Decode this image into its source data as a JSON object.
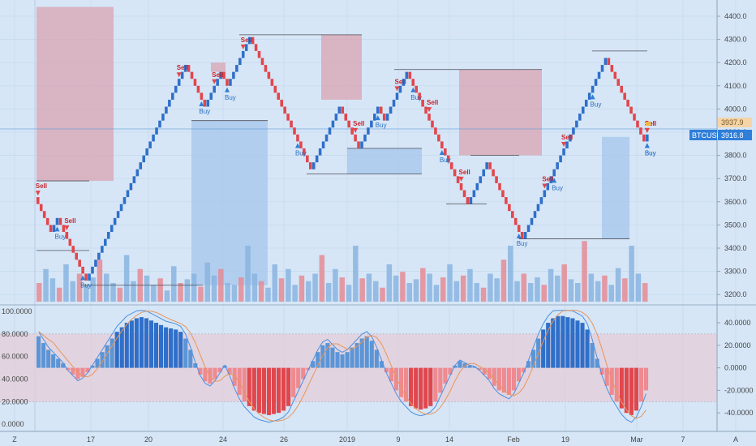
{
  "chart_data": [
    {
      "type": "renko",
      "symbol": "BTCUSD",
      "last_price_label": "3916.8",
      "secondary_price_label": "3937.9",
      "ylim": [
        3150,
        4470
      ],
      "y_ticks": [
        {
          "v": 4400,
          "label": "4400.0"
        },
        {
          "v": 4300,
          "label": "4300.0"
        },
        {
          "v": 4200,
          "label": "4200.0"
        },
        {
          "v": 4100,
          "label": "4100.0"
        },
        {
          "v": 4000,
          "label": "4000.0"
        },
        {
          "v": 3900,
          "label": "3900.0"
        },
        {
          "v": 3800,
          "label": "3800.0"
        },
        {
          "v": 3700,
          "label": "3700.0"
        },
        {
          "v": 3600,
          "label": "3600.0"
        },
        {
          "v": 3500,
          "label": "3500.0"
        },
        {
          "v": 3400,
          "label": "3400.0"
        },
        {
          "v": 3300,
          "label": "3300.0"
        },
        {
          "v": 3200,
          "label": "3200.0"
        }
      ],
      "brick_size": 30,
      "price_path": [
        3620,
        3460,
        3530,
        3410,
        3240,
        3320,
        4200,
        4000,
        4180,
        4080,
        4320,
        3720,
        4030,
        3830,
        4030,
        3930,
        4160,
        3590,
        3780,
        3500,
        3440,
        3680,
        4240,
        3860,
        3900
      ],
      "signals": [
        {
          "type": "Sell",
          "brick": 0
        },
        {
          "type": "Buy",
          "brick": 6
        },
        {
          "type": "Sell",
          "brick": 9
        },
        {
          "type": "Buy",
          "brick": 14
        },
        {
          "type": "Sell",
          "brick": 44
        },
        {
          "type": "Buy",
          "brick": 51
        },
        {
          "type": "Sell",
          "brick": 55
        },
        {
          "type": "Buy",
          "brick": 59
        },
        {
          "type": "Sell",
          "brick": 64
        },
        {
          "type": "Buy",
          "brick": 81
        },
        {
          "type": "Sell",
          "brick": 99
        },
        {
          "type": "Buy",
          "brick": 106
        },
        {
          "type": "Sell",
          "brick": 112
        },
        {
          "type": "Buy",
          "brick": 117
        },
        {
          "type": "Sell",
          "brick": 122
        },
        {
          "type": "Buy",
          "brick": 126
        },
        {
          "type": "Sell",
          "brick": 132
        },
        {
          "type": "Buy",
          "brick": 150
        },
        {
          "type": "Sell",
          "brick": 158
        },
        {
          "type": "Buy",
          "brick": 161
        },
        {
          "type": "Sell",
          "brick": 164
        },
        {
          "type": "Buy",
          "brick": 173
        },
        {
          "type": "Sell",
          "brick": 219
        },
        {
          "type": "Buy",
          "brick": 232
        },
        {
          "type": "Sell",
          "brick": 235
        },
        {
          "type": "Buy",
          "brick": 238
        }
      ],
      "zones": [
        {
          "kind": "sell",
          "x0": 45,
          "x1": 140,
          "top": 4440,
          "bottom": 3690
        },
        {
          "kind": "sell",
          "x0": 260,
          "x1": 278,
          "top": 4200,
          "bottom": 4160
        },
        {
          "kind": "sell",
          "x0": 396,
          "x1": 446,
          "top": 4320,
          "bottom": 4040
        },
        {
          "kind": "sell",
          "x0": 566,
          "x1": 668,
          "top": 4170,
          "bottom": 3800
        },
        {
          "kind": "buy",
          "x0": 236,
          "x1": 330,
          "top": 3950,
          "bottom": 3240
        },
        {
          "kind": "buy",
          "x0": 428,
          "x1": 520,
          "top": 3830,
          "bottom": 3720
        },
        {
          "kind": "buy",
          "x0": 742,
          "x1": 776,
          "top": 3880,
          "bottom": 3440
        }
      ],
      "levels": [
        {
          "x0": 45,
          "x1": 110,
          "v": 3690
        },
        {
          "x0": 45,
          "x1": 110,
          "v": 3390
        },
        {
          "x0": 100,
          "x1": 250,
          "v": 3240
        },
        {
          "x0": 295,
          "x1": 446,
          "v": 4320
        },
        {
          "x0": 236,
          "x1": 330,
          "v": 3950
        },
        {
          "x0": 378,
          "x1": 520,
          "v": 3720
        },
        {
          "x0": 428,
          "x1": 520,
          "v": 3830
        },
        {
          "x0": 486,
          "x1": 668,
          "v": 4170
        },
        {
          "x0": 550,
          "x1": 600,
          "v": 3590
        },
        {
          "x0": 580,
          "x1": 640,
          "v": 3800
        },
        {
          "x0": 640,
          "x1": 776,
          "v": 3440
        },
        {
          "x0": 730,
          "x1": 798,
          "v": 4250
        }
      ],
      "volume": [
        20,
        35,
        25,
        15,
        40,
        22,
        30,
        18,
        26,
        45,
        30,
        20,
        15,
        50,
        22,
        35,
        28,
        18,
        25,
        12,
        38,
        20,
        24,
        30,
        16,
        42,
        28,
        35,
        20,
        18,
        26,
        60,
        30,
        22,
        15,
        40,
        25,
        35,
        18,
        28,
        22,
        30,
        50,
        20,
        35,
        26,
        18,
        60,
        25,
        30,
        22,
        15,
        40,
        28,
        32,
        20,
        24,
        36,
        30,
        18,
        26,
        40,
        22,
        28,
        35,
        20,
        15,
        30,
        25,
        45,
        60,
        22,
        30,
        20,
        26,
        18,
        35,
        28,
        40,
        24,
        20,
        65,
        30,
        22,
        28,
        18,
        36,
        25,
        60,
        30,
        20,
        28,
        22,
        35,
        15,
        30,
        26,
        40,
        20,
        28
      ],
      "x_ticks": [
        {
          "x": 18,
          "label": "Z"
        },
        {
          "x": 112,
          "label": "17"
        },
        {
          "x": 183,
          "label": "20"
        },
        {
          "x": 275,
          "label": "24"
        },
        {
          "x": 350,
          "label": "26"
        },
        {
          "x": 428,
          "label": "2019"
        },
        {
          "x": 491,
          "label": "9"
        },
        {
          "x": 554,
          "label": "14"
        },
        {
          "x": 633,
          "label": "Feb"
        },
        {
          "x": 697,
          "label": "19"
        },
        {
          "x": 785,
          "label": "Mar"
        },
        {
          "x": 842,
          "label": "7"
        },
        {
          "x": 907,
          "label": "A"
        }
      ]
    },
    {
      "type": "oscillator",
      "left_ylim": [
        -5,
        103
      ],
      "left_ticks": [
        {
          "v": 100,
          "label": "100.0000"
        },
        {
          "v": 80,
          "label": "80.0000"
        },
        {
          "v": 60,
          "label": "60.0000"
        },
        {
          "v": 40,
          "label": "40.0000"
        },
        {
          "v": 20,
          "label": "20.0000"
        },
        {
          "v": 0,
          "label": "0.0000"
        }
      ],
      "right_ticks": [
        {
          "v": 40,
          "label": "40.0000"
        },
        {
          "v": 20,
          "label": "20.0000"
        },
        {
          "v": 0,
          "label": "0.0000"
        },
        {
          "v": -20,
          "label": "-20.0000"
        },
        {
          "v": -40,
          "label": "-40.0000"
        }
      ],
      "bands": [
        80,
        20
      ],
      "histogram": [
        28,
        22,
        16,
        12,
        8,
        4,
        -2,
        -6,
        -10,
        -8,
        -4,
        2,
        8,
        14,
        20,
        26,
        32,
        36,
        40,
        42,
        44,
        45,
        44,
        42,
        40,
        38,
        36,
        35,
        34,
        32,
        26,
        16,
        4,
        -6,
        -12,
        -14,
        -10,
        -4,
        2,
        -6,
        -16,
        -24,
        -30,
        -34,
        -38,
        -40,
        -41,
        -42,
        -41,
        -40,
        -38,
        -34,
        -26,
        -18,
        -10,
        -2,
        6,
        14,
        20,
        22,
        18,
        14,
        12,
        14,
        18,
        22,
        26,
        28,
        24,
        16,
        6,
        -4,
        -12,
        -20,
        -26,
        -30,
        -34,
        -36,
        -37,
        -36,
        -34,
        -30,
        -22,
        -14,
        -6,
        2,
        6,
        4,
        2,
        1,
        -2,
        -6,
        -10,
        -16,
        -20,
        -22,
        -24,
        -20,
        -12,
        -4,
        6,
        16,
        26,
        34,
        40,
        44,
        46,
        46,
        45,
        44,
        42,
        40,
        34,
        22,
        8,
        -6,
        -16,
        -24,
        -30,
        -36,
        -40,
        -42,
        -38,
        -30,
        -20
      ]
    }
  ]
}
